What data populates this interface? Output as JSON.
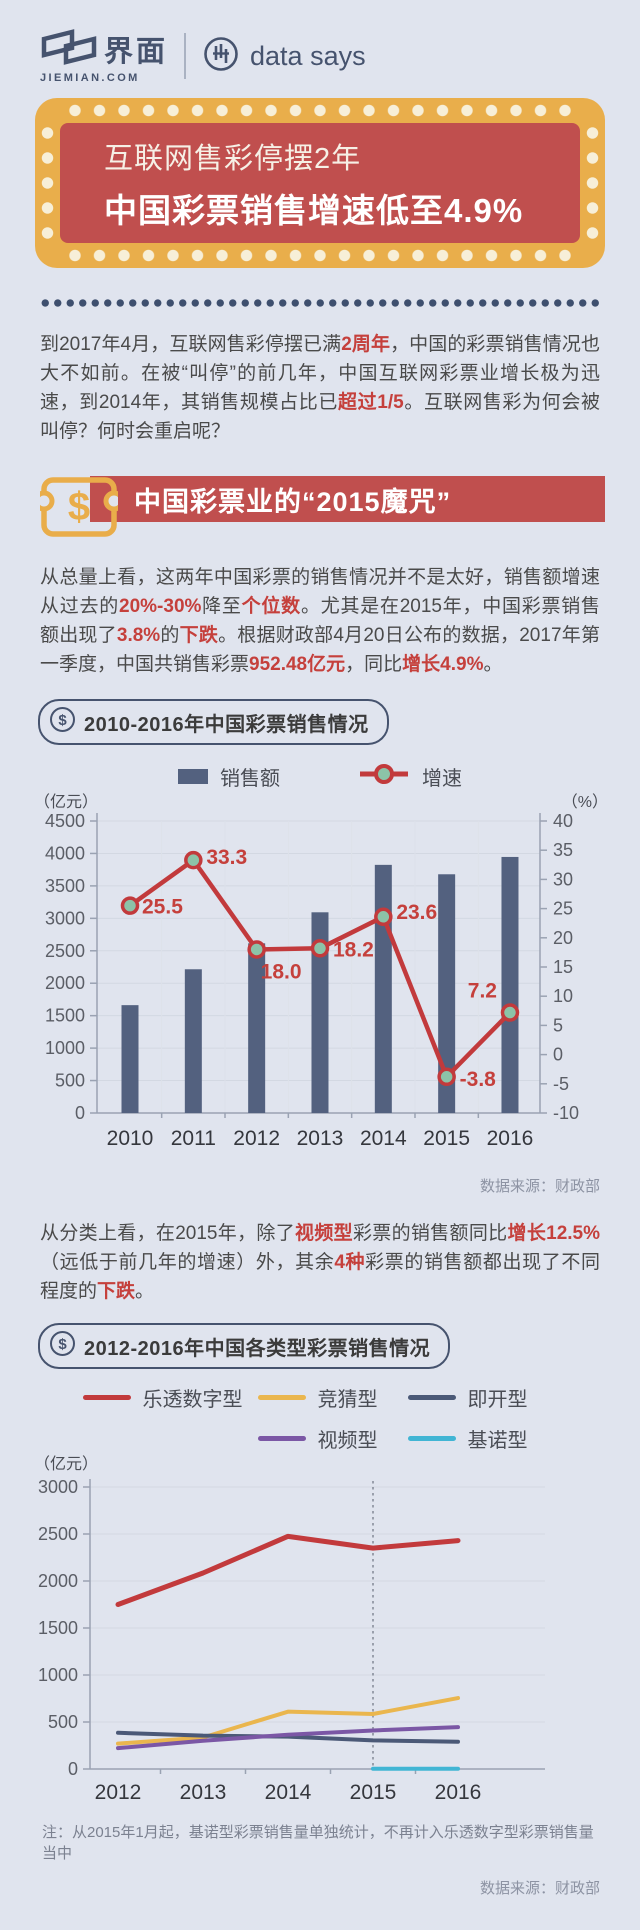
{
  "header": {
    "brand_cn": "界面",
    "brand_domain": "JIEMIAN.COM",
    "product": "data says"
  },
  "banner": {
    "title_line1": "互联网售彩停摆2年",
    "title_line2": "中国彩票销售增速低至4.9%"
  },
  "section": {
    "title": "中国彩票业的“2015魔咒”"
  },
  "paragraphs": {
    "intro": [
      {
        "t": "到2017年4月，互联网售彩停摆已满"
      },
      {
        "t": "2周年",
        "hl": true
      },
      {
        "t": "，中国的彩票销售情况也大不如前。在被“叫停”的前几年，中国互联网彩票业增长极为迅速，到2014年，其销售规模占比已"
      },
      {
        "t": "超过1/5",
        "hl": true
      },
      {
        "t": "。互联网售彩为何会被叫停？何时会重启呢？"
      }
    ],
    "overview": [
      {
        "t": "从总量上看，这两年中国彩票的销售情况并不是太好，销售额增速从过去的"
      },
      {
        "t": "20%-30%",
        "hl": true
      },
      {
        "t": "降至"
      },
      {
        "t": "个位数",
        "hl": true
      },
      {
        "t": "。尤其是在2015年，中国彩票销售额出现了"
      },
      {
        "t": "3.8%",
        "hl": true
      },
      {
        "t": "的"
      },
      {
        "t": "下跌",
        "hl": true
      },
      {
        "t": "。根据财政部4月20日公布的数据，2017年第一季度，中国共销售彩票"
      },
      {
        "t": "952.48亿元",
        "hl": true
      },
      {
        "t": "，同比"
      },
      {
        "t": "增长4.9%",
        "hl": true
      },
      {
        "t": "。"
      }
    ],
    "category": [
      {
        "t": "从分类上看，在2015年，除了"
      },
      {
        "t": "视频型",
        "hl": true
      },
      {
        "t": "彩票的销售额同比"
      },
      {
        "t": "增长12.5%",
        "hl": true
      },
      {
        "t": "（远低于前几年的增速）外，其余"
      },
      {
        "t": "4种",
        "hl": true
      },
      {
        "t": "彩票的销售额都出现了不同程度的"
      },
      {
        "t": "下跌",
        "hl": true
      },
      {
        "t": "。"
      }
    ]
  },
  "chart_data": [
    {
      "type": "bar",
      "title": "2010-2016年中国彩票销售情况",
      "categories": [
        "2010",
        "2011",
        "2012",
        "2013",
        "2014",
        "2015",
        "2016"
      ],
      "series": [
        {
          "name": "销售额",
          "type": "bar",
          "axis": "left",
          "unit": "亿元",
          "color": "#53617f",
          "values": [
            1662,
            2215,
            2615,
            3093,
            3824,
            3679,
            3946
          ]
        },
        {
          "name": "增速",
          "type": "line",
          "axis": "right",
          "unit": "%",
          "color": "#c23a3c",
          "marker_fill": "#8cc3a8",
          "values": [
            25.5,
            33.3,
            18.0,
            18.2,
            23.6,
            -3.8,
            7.2
          ]
        }
      ],
      "y_left": {
        "unit_label": "（亿元）",
        "min": 0,
        "max": 4500,
        "step": 500
      },
      "y_right": {
        "unit_label": "（%）",
        "min": -10,
        "max": 40,
        "step": 5
      },
      "grid": true,
      "legend_position": "top",
      "source": "数据来源：财政部"
    },
    {
      "type": "line",
      "title": "2012-2016年中国各类型彩票销售情况",
      "categories": [
        "2012",
        "2013",
        "2014",
        "2015",
        "2016"
      ],
      "series": [
        {
          "name": "乐透数字型",
          "color": "#c23a3c",
          "values": [
            1750,
            2085,
            2475,
            2350,
            2430
          ]
        },
        {
          "name": "竞猜型",
          "color": "#eab64e",
          "values": [
            270,
            335,
            610,
            585,
            755
          ]
        },
        {
          "name": "即开型",
          "color": "#4b5977",
          "values": [
            385,
            355,
            345,
            305,
            290
          ]
        },
        {
          "name": "视频型",
          "color": "#7b57a5",
          "values": [
            222,
            300,
            365,
            410,
            445
          ]
        },
        {
          "name": "基诺型",
          "color": "#41b5d4",
          "values": [
            null,
            null,
            null,
            3,
            3
          ]
        }
      ],
      "y_left": {
        "unit_label": "（亿元）",
        "min": 0,
        "max": 3000,
        "step": 500
      },
      "dashed_line_category": "2015",
      "grid": true,
      "legend_position": "top",
      "note": "注：从2015年1月起，基诺型彩票销售量单独统计，不再计入乐透数字型彩票销售量当中",
      "source": "数据来源：财政部"
    }
  ],
  "colors": {
    "background": "#e0e4ee",
    "banner_red": "#c04f4e",
    "banner_gold": "#e9ae4b",
    "dot_cream": "#f7efd8",
    "navy": "#46536e",
    "highlight_red": "#c5403c"
  }
}
